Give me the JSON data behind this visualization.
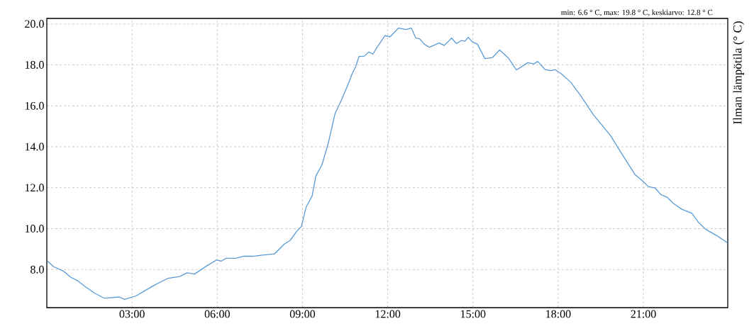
{
  "chart_data": {
    "type": "line",
    "ylabel": "Ilman lämpötila (° C)",
    "annotations": [
      "min: 6.6 ° C, max: 19.8 ° C, keskiarvo: 12.8 ° C"
    ],
    "xlim": [
      0,
      23.97
    ],
    "ylim": [
      6.14,
      20.27
    ],
    "xticks": [
      {
        "value": 3,
        "label": "03:00"
      },
      {
        "value": 6,
        "label": "06:00"
      },
      {
        "value": 9,
        "label": "09:00"
      },
      {
        "value": 12,
        "label": "12:00"
      },
      {
        "value": 15,
        "label": "15:00"
      },
      {
        "value": 18,
        "label": "18:00"
      },
      {
        "value": 21,
        "label": "21:00"
      }
    ],
    "yticks": [
      {
        "value": 8,
        "label": "8.0"
      },
      {
        "value": 10,
        "label": "10.0"
      },
      {
        "value": 12,
        "label": "12.0"
      },
      {
        "value": 14,
        "label": "14.0"
      },
      {
        "value": 16,
        "label": "16.0"
      },
      {
        "value": 18,
        "label": "18.0"
      },
      {
        "value": 20,
        "label": "20.0"
      }
    ],
    "grid": true,
    "series": [
      {
        "color": "#5b9bd5",
        "x": [
          0.03,
          0.24,
          0.58,
          0.84,
          1.09,
          1.35,
          1.69,
          2.03,
          2.55,
          2.74,
          3.15,
          3.44,
          3.83,
          4.26,
          4.68,
          4.94,
          5.2,
          5.62,
          5.97,
          6.14,
          6.31,
          6.65,
          6.91,
          7.25,
          7.59,
          8.02,
          8.36,
          8.57,
          8.79,
          8.96,
          9.13,
          9.34,
          9.47,
          9.68,
          9.9,
          10.15,
          10.32,
          10.58,
          10.75,
          10.88,
          10.99,
          11.18,
          11.33,
          11.48,
          11.61,
          11.76,
          11.9,
          12.08,
          12.38,
          12.64,
          12.83,
          12.99,
          13.12,
          13.29,
          13.47,
          13.81,
          13.99,
          14.25,
          14.42,
          14.59,
          14.72,
          14.83,
          14.98,
          15.16,
          15.42,
          15.68,
          15.94,
          16.24,
          16.53,
          16.93,
          17.15,
          17.28,
          17.54,
          17.76,
          17.89,
          18.11,
          18.45,
          18.8,
          19.23,
          19.84,
          20.27,
          20.71,
          20.97,
          21.18,
          21.4,
          21.62,
          21.83,
          22.05,
          22.36,
          22.7,
          22.92,
          23.18,
          23.57,
          23.96
        ],
        "values": [
          8.41,
          8.14,
          7.93,
          7.63,
          7.45,
          7.17,
          6.84,
          6.6,
          6.66,
          6.54,
          6.72,
          6.96,
          7.27,
          7.57,
          7.66,
          7.84,
          7.78,
          8.17,
          8.47,
          8.41,
          8.55,
          8.55,
          8.65,
          8.65,
          8.71,
          8.77,
          9.25,
          9.43,
          9.86,
          10.1,
          11.06,
          11.6,
          12.57,
          13.1,
          14.13,
          15.64,
          16.12,
          16.96,
          17.57,
          17.93,
          18.41,
          18.43,
          18.63,
          18.53,
          18.83,
          19.13,
          19.43,
          19.37,
          19.8,
          19.73,
          19.8,
          19.31,
          19.28,
          19.01,
          18.86,
          19.07,
          18.95,
          19.31,
          19.04,
          19.19,
          19.16,
          19.35,
          19.13,
          19.01,
          18.31,
          18.35,
          18.73,
          18.35,
          17.75,
          18.11,
          18.05,
          18.17,
          17.77,
          17.72,
          17.77,
          17.57,
          17.14,
          16.48,
          15.58,
          14.55,
          13.59,
          12.63,
          12.33,
          12.05,
          12.0,
          11.66,
          11.54,
          11.24,
          10.94,
          10.76,
          10.34,
          9.98,
          9.67,
          9.31
        ]
      }
    ]
  }
}
